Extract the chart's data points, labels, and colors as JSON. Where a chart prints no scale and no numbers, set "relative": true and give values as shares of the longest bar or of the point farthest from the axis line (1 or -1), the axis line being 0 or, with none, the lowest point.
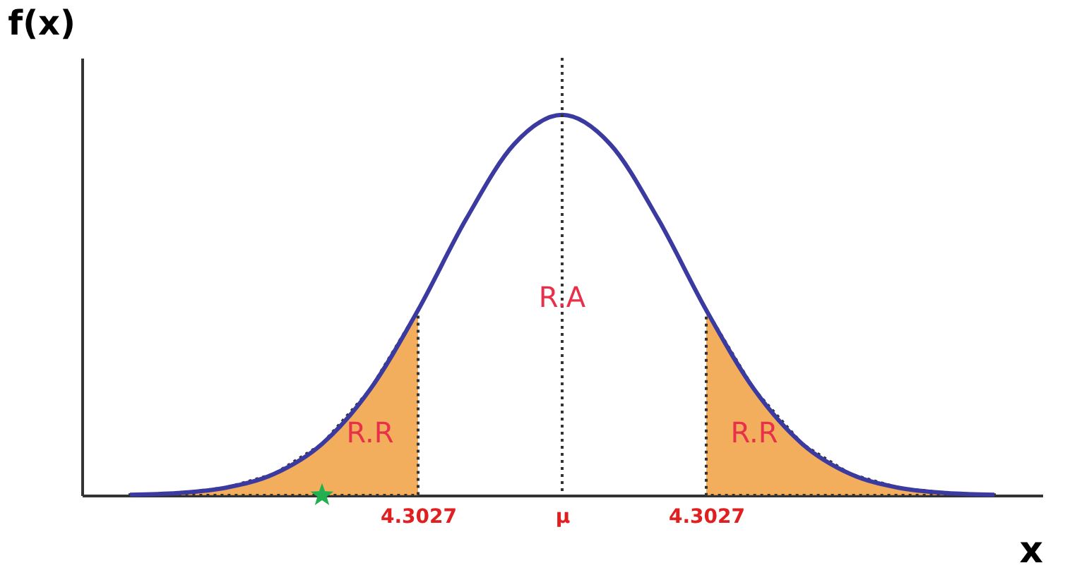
{
  "chart_data": {
    "type": "line",
    "relative": true,
    "xlabel": "x",
    "ylabel": "f(x)",
    "categories": [
      null,
      null,
      null,
      null,
      null,
      null,
      "4.3027",
      null,
      null,
      "μ",
      null,
      null,
      "4.3027",
      null,
      null,
      null,
      null,
      null,
      null
    ],
    "series": [
      {
        "type": "area",
        "color": "#f0a040",
        "values": [
          0.0015,
          0.006,
          0.02,
          0.056,
          0.135,
          0.278,
          0.487,
          null,
          null,
          null,
          null,
          null,
          null,
          null,
          null,
          null,
          null,
          null,
          null
        ]
      },
      {
        "type": "area",
        "color": "#f0a040",
        "values": [
          null,
          null,
          null,
          null,
          null,
          null,
          null,
          null,
          null,
          null,
          null,
          null,
          0.487,
          0.278,
          0.135,
          0.056,
          0.02,
          0.006,
          0.0015
        ]
      },
      {
        "color": "#3a3aa0",
        "values": [
          0.0015,
          0.006,
          0.02,
          0.056,
          0.135,
          0.278,
          0.487,
          0.726,
          0.923,
          1,
          0.923,
          0.726,
          0.487,
          0.278,
          0.135,
          0.056,
          0.02,
          0.006,
          0.0015
        ]
      },
      {
        "type": "scatter",
        "marker": "star",
        "color": "#20b050",
        "values": [
          null,
          null,
          null,
          null,
          0,
          null,
          null,
          null,
          null,
          null,
          null,
          null,
          null,
          null,
          null,
          null,
          null,
          null,
          null
        ]
      }
    ],
    "ref_lines": [
      {
        "axis": "x",
        "value": "μ",
        "line_style": "dotted",
        "color": "#333333"
      }
    ],
    "annotations": [
      "R.R",
      "R.A",
      "R.R"
    ]
  }
}
